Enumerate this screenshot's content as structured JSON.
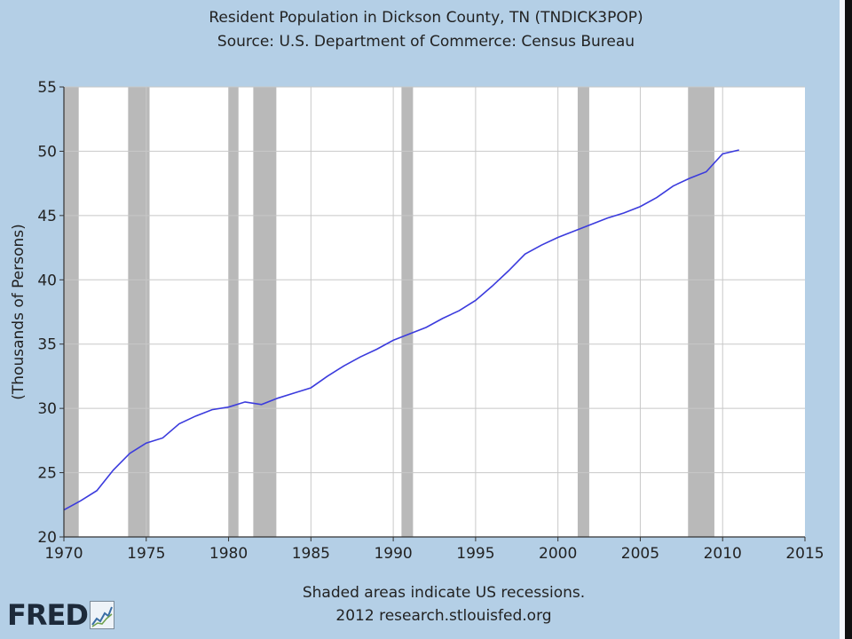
{
  "header": {
    "title": "Resident Population in Dickson County, TN (TNDICK3POP)",
    "subtitle": "Source: U.S. Department of Commerce: Census Bureau"
  },
  "footer": {
    "note": "Shaded areas indicate US recessions.",
    "credit": "2012 research.stlouisfed.org",
    "logo_text": "FRED"
  },
  "colors": {
    "background": "#b4cfe6",
    "plot_background": "#ffffff",
    "line": "#3b3bdd",
    "recession": "#b9b9b9",
    "grid": "#c8c8c8"
  },
  "chart_data": {
    "type": "line",
    "title": "Resident Population in Dickson County, TN (TNDICK3POP)",
    "subtitle": "Source: U.S. Department of Commerce: Census Bureau",
    "xlabel": "",
    "ylabel": "(Thousands of Persons)",
    "xlim": [
      1970,
      2015
    ],
    "ylim": [
      20,
      55
    ],
    "x_ticks": [
      1970,
      1975,
      1980,
      1985,
      1990,
      1995,
      2000,
      2005,
      2010,
      2015
    ],
    "y_ticks": [
      20,
      25,
      30,
      35,
      40,
      45,
      50,
      55
    ],
    "grid": true,
    "legend": "none",
    "recessions": [
      [
        1970.0,
        1970.9
      ],
      [
        1973.9,
        1975.2
      ],
      [
        1980.0,
        1980.6
      ],
      [
        1981.5,
        1982.9
      ],
      [
        1990.5,
        1991.2
      ],
      [
        2001.2,
        2001.9
      ],
      [
        2007.9,
        2009.5
      ]
    ],
    "series": [
      {
        "x": [
          1970,
          1971,
          1972,
          1973,
          1974,
          1975,
          1976,
          1977,
          1978,
          1979,
          1980,
          1981,
          1982,
          1983,
          1984,
          1985,
          1986,
          1987,
          1988,
          1989,
          1990,
          1991,
          1992,
          1993,
          1994,
          1995,
          1996,
          1997,
          1998,
          1999,
          2000,
          2001,
          2002,
          2003,
          2004,
          2005,
          2006,
          2007,
          2008,
          2009,
          2010,
          2011
        ],
        "values": [
          22.1,
          22.8,
          23.6,
          25.2,
          26.5,
          27.3,
          27.7,
          28.8,
          29.4,
          29.9,
          30.1,
          30.5,
          30.3,
          30.8,
          31.2,
          31.6,
          32.5,
          33.3,
          34.0,
          34.6,
          35.3,
          35.8,
          36.3,
          37.0,
          37.6,
          38.4,
          39.5,
          40.7,
          42.0,
          42.7,
          43.3,
          43.8,
          44.3,
          44.8,
          45.2,
          45.7,
          46.4,
          47.3,
          47.9,
          48.4,
          49.8,
          50.1
        ]
      }
    ]
  }
}
